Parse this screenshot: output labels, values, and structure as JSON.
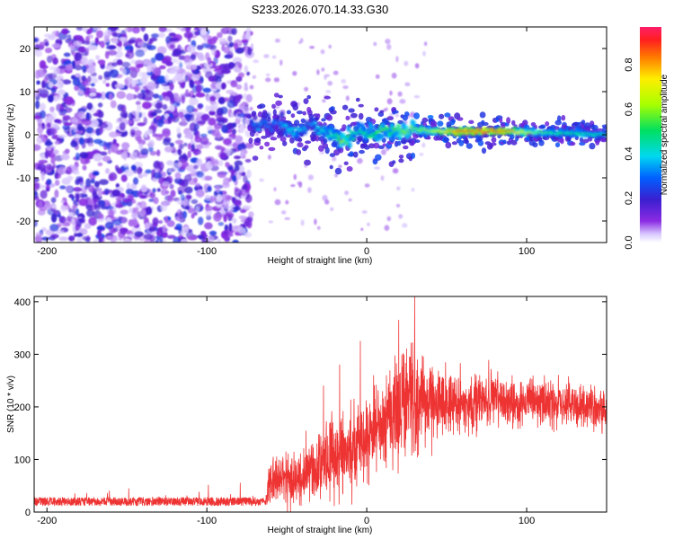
{
  "title": "S233.2026.070.14.33.G30",
  "chart_data": [
    {
      "type": "heatmap",
      "name": "spectrogram",
      "xlabel": "Height of straight line (km)",
      "ylabel": "Frequency (Hz)",
      "xlim": [
        -208,
        150
      ],
      "ylim": [
        -25,
        25
      ],
      "x_ticks": [
        -200,
        -100,
        0,
        100
      ],
      "x_tick_labels": [
        "-200",
        "-100",
        "0",
        "100"
      ],
      "y_ticks": [
        -20,
        -10,
        0,
        10,
        20
      ],
      "y_tick_labels": [
        "-20",
        "-10",
        "0",
        "10",
        "20"
      ],
      "colorbar": {
        "label": "Normalized spectral amplitude",
        "range": [
          0.0,
          0.97
        ],
        "ticks": [
          0.0,
          0.2,
          0.4,
          0.6,
          0.8
        ],
        "tick_labels": [
          "0.0",
          "0.2",
          "0.4",
          "0.6",
          "0.8"
        ]
      },
      "noise_region_x": [
        -208,
        -73
      ],
      "signal_start_x": -73,
      "signal_ridge": [
        {
          "x": -72,
          "f": 2.5,
          "amp": 0.25
        },
        {
          "x": -68,
          "f": 1.5,
          "amp": 0.35
        },
        {
          "x": -64,
          "f": 3.0,
          "amp": 0.3
        },
        {
          "x": -60,
          "f": 2.0,
          "amp": 0.3
        },
        {
          "x": -55,
          "f": 3.0,
          "amp": 0.28
        },
        {
          "x": -50,
          "f": 1.5,
          "amp": 0.38
        },
        {
          "x": -45,
          "f": 0.5,
          "amp": 0.4
        },
        {
          "x": -40,
          "f": 1.0,
          "amp": 0.38
        },
        {
          "x": -35,
          "f": 2.5,
          "amp": 0.3
        },
        {
          "x": -30,
          "f": 1.5,
          "amp": 0.4
        },
        {
          "x": -25,
          "f": 1.0,
          "amp": 0.42
        },
        {
          "x": -20,
          "f": 0.0,
          "amp": 0.45
        },
        {
          "x": -15,
          "f": -1.5,
          "amp": 0.6
        },
        {
          "x": -10,
          "f": -0.5,
          "amp": 0.5
        },
        {
          "x": -5,
          "f": 1.0,
          "amp": 0.42
        },
        {
          "x": 0,
          "f": 0.5,
          "amp": 0.5
        },
        {
          "x": 5,
          "f": 0.0,
          "amp": 0.5
        },
        {
          "x": 10,
          "f": 1.5,
          "amp": 0.55
        },
        {
          "x": 15,
          "f": 0.5,
          "amp": 0.5
        },
        {
          "x": 20,
          "f": 1.5,
          "amp": 0.55
        },
        {
          "x": 25,
          "f": 0.5,
          "amp": 0.58
        },
        {
          "x": 30,
          "f": 1.2,
          "amp": 0.55
        },
        {
          "x": 40,
          "f": 1.0,
          "amp": 0.6
        },
        {
          "x": 50,
          "f": 0.8,
          "amp": 0.75
        },
        {
          "x": 60,
          "f": 0.8,
          "amp": 0.9
        },
        {
          "x": 75,
          "f": 0.8,
          "amp": 0.92
        },
        {
          "x": 90,
          "f": 0.8,
          "amp": 0.85
        },
        {
          "x": 100,
          "f": 0.6,
          "amp": 0.62
        },
        {
          "x": 115,
          "f": 0.5,
          "amp": 0.52
        },
        {
          "x": 130,
          "f": 0.3,
          "amp": 0.5
        },
        {
          "x": 150,
          "f": 0.0,
          "amp": 0.48
        }
      ],
      "colors": {
        "noise": "#8a2be2",
        "low_amp": "#5a1fd6"
      }
    },
    {
      "type": "line",
      "name": "snr",
      "xlabel": "Height of straight line (km)",
      "ylabel": "SNR (10 * v/v)",
      "xlim": [
        -208,
        150
      ],
      "ylim": [
        0,
        410
      ],
      "x_ticks": [
        -200,
        -100,
        0,
        100
      ],
      "x_tick_labels": [
        "-200",
        "-100",
        "0",
        "100"
      ],
      "y_ticks": [
        0,
        100,
        200,
        300,
        400
      ],
      "y_tick_labels": [
        "0",
        "100",
        "200",
        "300",
        "400"
      ],
      "color": "#ee3333",
      "envelope": {
        "x": [
          -208,
          -180,
          -150,
          -120,
          -90,
          -63,
          -60,
          -50,
          -40,
          -30,
          -20,
          -10,
          0,
          10,
          20,
          25,
          30,
          40,
          50,
          60,
          70,
          80,
          90,
          100,
          110,
          120,
          130,
          140,
          150
        ],
        "mean": [
          20,
          20,
          20,
          20,
          20,
          20,
          70,
          60,
          65,
          90,
          110,
          120,
          145,
          175,
          200,
          215,
          215,
          210,
          210,
          205,
          210,
          215,
          212,
          205,
          210,
          205,
          200,
          200,
          190
        ],
        "spread": [
          10,
          10,
          10,
          10,
          10,
          10,
          45,
          45,
          50,
          60,
          70,
          70,
          70,
          75,
          90,
          100,
          95,
          65,
          55,
          45,
          45,
          45,
          45,
          40,
          40,
          40,
          40,
          40,
          40
        ]
      },
      "peaks": [
        {
          "x": 30,
          "y": 410
        },
        {
          "x": 20,
          "y": 365
        },
        {
          "x": -17,
          "y": 280
        },
        {
          "x": -27,
          "y": 240
        },
        {
          "x": -4,
          "y": 325
        }
      ]
    }
  ]
}
